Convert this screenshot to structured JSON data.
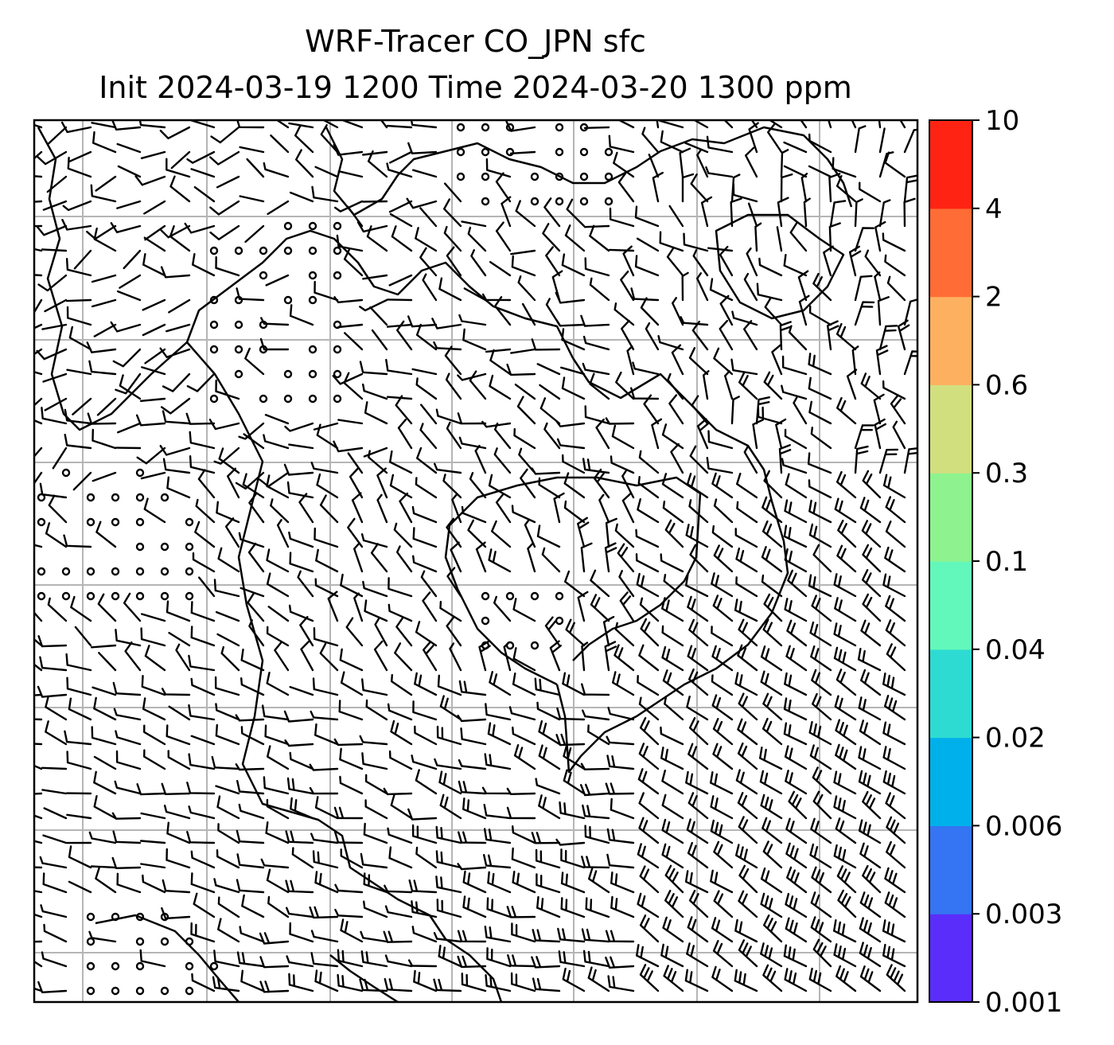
{
  "title": {
    "line1": "WRF-Tracer CO_JPN sfc",
    "line2": "Init 2024-03-19 1200 Time 2024-03-20 1300 ppm"
  },
  "map": {
    "grid": true,
    "field": "surface wind barbs",
    "coastlines": true
  },
  "colorbar": {
    "levels": [
      "0.001",
      "0.003",
      "0.006",
      "0.02",
      "0.04",
      "0.1",
      "0.3",
      "0.6",
      "2",
      "4",
      "10"
    ],
    "colors": [
      "#5b2dfb",
      "#3574f2",
      "#00b0ea",
      "#2ddbd2",
      "#63f8bb",
      "#8ef38e",
      "#d2df7f",
      "#fdb060",
      "#ff6c36",
      "#ff2314"
    ]
  }
}
